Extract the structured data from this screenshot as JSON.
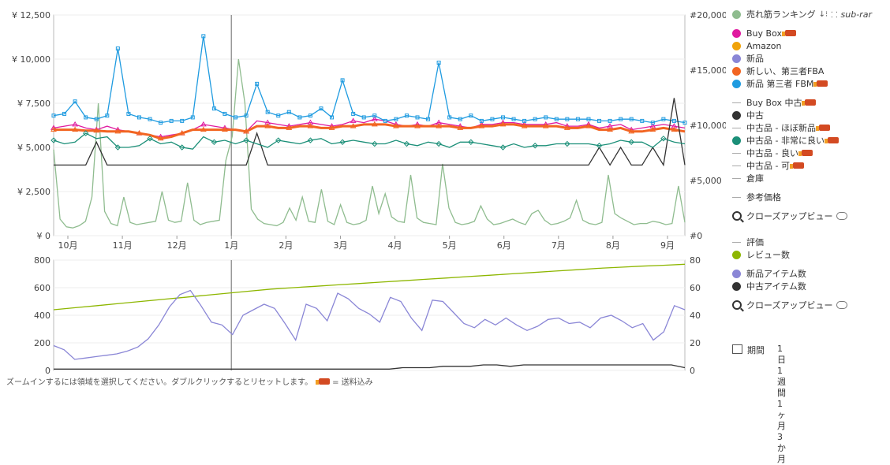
{
  "chart_data": [
    {
      "type": "line",
      "panel": "upper",
      "yaxis_left": {
        "ticks": [
          "¥ 0",
          "¥ 2,500",
          "¥ 5,000",
          "¥ 7,500",
          "¥ 10,000",
          "¥ 12,500"
        ],
        "ylim": [
          0,
          12500
        ]
      },
      "yaxis_right": {
        "ticks": [
          "#0",
          "#5,000",
          "#10,000",
          "#15,000",
          "#20,000"
        ],
        "ylim": [
          0,
          20000
        ]
      },
      "x_ticks": [
        "10月",
        "11月",
        "12月",
        "1月",
        "2月",
        "3月",
        "4月",
        "5月",
        "6月",
        "7月",
        "8月",
        "9月"
      ],
      "series": [
        {
          "name": "売れ筋ランキング",
          "color": "#8fbc8f",
          "axis": "right",
          "values": [
            7800,
            1500,
            800,
            700,
            900,
            1300,
            3500,
            12000,
            2200,
            1100,
            900,
            3500,
            1200,
            1000,
            1100,
            1200,
            1300,
            4000,
            1400,
            1200,
            1300,
            4800,
            1400,
            1000,
            1200,
            1300,
            1400,
            6800,
            9000,
            16000,
            12000,
            2400,
            1500,
            1100,
            1000,
            900,
            1200,
            2500,
            1400,
            3500,
            1300,
            1200,
            4200,
            1300,
            1000,
            2800,
            1200,
            1000,
            1100,
            1400,
            4500,
            2000,
            3800,
            1700,
            1300,
            1200,
            5500,
            1600,
            1200,
            1100,
            1000,
            6500,
            2500,
            1200,
            1000,
            1100,
            1300,
            2700,
            1500,
            1000,
            1100,
            1300,
            1500,
            1200,
            1000,
            2000,
            2300,
            1400,
            1000,
            1100,
            1300,
            1600,
            3200,
            1400,
            1100,
            1000,
            1200,
            5500,
            2000,
            1600,
            1300,
            1000,
            1100,
            1100,
            1300,
            1200,
            1000,
            1100,
            4500,
            1200
          ]
        },
        {
          "name": "Buy Box",
          "color": "#e01aa0",
          "axis": "left",
          "values": [
            6100,
            6200,
            6300,
            6100,
            6000,
            6200,
            6000,
            5900,
            5800,
            5700,
            5600,
            5700,
            5800,
            6000,
            6300,
            6200,
            6100,
            6000,
            5900,
            6500,
            6400,
            6300,
            6200,
            6300,
            6400,
            6300,
            6200,
            6300,
            6500,
            6400,
            6600,
            6500,
            6300,
            6200,
            6300,
            6200,
            6400,
            6300,
            6200,
            6100,
            6300,
            6300,
            6400,
            6400,
            6300,
            6300,
            6300,
            6400,
            6200,
            6200,
            6300,
            6100,
            6200,
            6300,
            6000,
            6100,
            6200,
            6300,
            6200,
            6100
          ]
        },
        {
          "name": "新しい、第三者FBA",
          "color": "#f26522",
          "axis": "left",
          "values": [
            6000,
            6000,
            6000,
            5950,
            5950,
            5900,
            5900,
            5900,
            5800,
            5700,
            5500,
            5600,
            5800,
            6000,
            6000,
            6000,
            6000,
            6000,
            5900,
            6200,
            6200,
            6100,
            6100,
            6200,
            6200,
            6100,
            6100,
            6200,
            6200,
            6300,
            6300,
            6300,
            6200,
            6200,
            6200,
            6200,
            6200,
            6200,
            6100,
            6100,
            6200,
            6200,
            6300,
            6300,
            6200,
            6200,
            6200,
            6200,
            6100,
            6100,
            6200,
            6000,
            6000,
            6100,
            5900,
            5900,
            6000,
            6100,
            6000,
            5900
          ]
        },
        {
          "name": "新品 第三者 FBM",
          "color": "#1f9be0",
          "axis": "left",
          "values": [
            6800,
            6900,
            7600,
            6700,
            6600,
            6800,
            10600,
            6900,
            6700,
            6600,
            6400,
            6500,
            6500,
            6700,
            11300,
            7200,
            6900,
            6700,
            6800,
            8600,
            7000,
            6800,
            7000,
            6700,
            6800,
            7200,
            6700,
            8800,
            6900,
            6700,
            6800,
            6500,
            6600,
            6800,
            6700,
            6600,
            9800,
            6700,
            6600,
            6800,
            6500,
            6600,
            6700,
            6600,
            6500,
            6600,
            6700,
            6600,
            6600,
            6600,
            6600,
            6500,
            6500,
            6600,
            6600,
            6500,
            6400,
            6600,
            6500,
            6400
          ]
        },
        {
          "name": "中古",
          "color": "#333333",
          "axis": "left",
          "values": [
            4000,
            4000,
            4000,
            4000,
            5300,
            4000,
            4000,
            4000,
            4000,
            4000,
            4000,
            4000,
            4000,
            4000,
            4000,
            4000,
            4000,
            4000,
            4000,
            5800,
            4000,
            4000,
            4000,
            4000,
            4000,
            4000,
            4000,
            4000,
            4000,
            4000,
            4000,
            4000,
            4000,
            4000,
            4000,
            4000,
            4000,
            4000,
            4000,
            4000,
            4000,
            4000,
            4000,
            4000,
            4000,
            4000,
            4000,
            4000,
            4000,
            4000,
            4000,
            5000,
            4000,
            5000,
            4000,
            4000,
            5000,
            4000,
            7800,
            4000
          ]
        },
        {
          "name": "中古品 - 非常に良い",
          "color": "#1b8f78",
          "axis": "left",
          "values": [
            5400,
            5200,
            5300,
            5800,
            5500,
            5600,
            5000,
            5000,
            5100,
            5500,
            5200,
            5300,
            5000,
            4900,
            5600,
            5300,
            5400,
            5200,
            5400,
            5200,
            5000,
            5400,
            5300,
            5200,
            5400,
            5500,
            5200,
            5300,
            5400,
            5300,
            5200,
            5200,
            5400,
            5200,
            5100,
            5300,
            5200,
            5000,
            5300,
            5300,
            5200,
            5100,
            5000,
            5200,
            5000,
            5100,
            5100,
            5200,
            5200,
            5200,
            5200,
            5100,
            5200,
            5400,
            5300,
            5300,
            5000,
            5500,
            5300,
            5200
          ]
        }
      ]
    },
    {
      "type": "line",
      "panel": "lower",
      "yaxis_left": {
        "ticks": [
          "0",
          "200",
          "400",
          "600",
          "800"
        ],
        "ylim": [
          0,
          800
        ]
      },
      "yaxis_right": {
        "ticks": [
          "0",
          "20",
          "40",
          "60",
          "80"
        ],
        "ylim": [
          0,
          80
        ]
      },
      "series": [
        {
          "name": "レビュー数",
          "color": "#8db600",
          "axis": "left",
          "values": [
            440,
            455,
            470,
            485,
            500,
            515,
            530,
            545,
            560,
            575,
            590,
            600,
            610,
            620,
            630,
            640,
            650,
            660,
            670,
            680,
            690,
            700,
            710,
            720,
            730,
            740,
            748,
            756,
            762,
            770
          ]
        },
        {
          "name": "新品アイテム数",
          "color": "#8a86d6",
          "axis": "right",
          "values": [
            18,
            15,
            8,
            9,
            10,
            11,
            12,
            14,
            17,
            23,
            33,
            46,
            55,
            58,
            47,
            35,
            33,
            26,
            40,
            44,
            48,
            45,
            34,
            22,
            48,
            45,
            36,
            56,
            52,
            45,
            41,
            35,
            53,
            50,
            38,
            29,
            51,
            50,
            42,
            34,
            31,
            37,
            33,
            38,
            33,
            29,
            32,
            37,
            38,
            34,
            35,
            31,
            38,
            40,
            36,
            31,
            34,
            22,
            28,
            47,
            44
          ]
        },
        {
          "name": "中古アイテム数",
          "color": "#333333",
          "axis": "right",
          "values": [
            1,
            1,
            1,
            1,
            1,
            1,
            1,
            1,
            1,
            1,
            1,
            1,
            1,
            1,
            1,
            1,
            1,
            1,
            1,
            1,
            1,
            1,
            1,
            1,
            1,
            1,
            2,
            2,
            2,
            3,
            3,
            3,
            4,
            4,
            3,
            4,
            4,
            4,
            4,
            4,
            4,
            4,
            4,
            4,
            4,
            4,
            4,
            2
          ]
        }
      ]
    }
  ],
  "legend": {
    "sales_rank": "売れ筋ランキング",
    "sub_rank": "sub-rar",
    "buy_box": "Buy Box",
    "amazon": "Amazon",
    "new": "新品",
    "new_fba": "新しい、第三者FBA",
    "new_fbm": "新品 第三者 FBM",
    "buy_box_used": "Buy Box 中古",
    "used": "中古",
    "used_like_new": "中古品 - ほぼ新品",
    "used_very_good": "中古品 - 非常に良い",
    "used_good": "中古品 - 良い",
    "used_acceptable": "中古品 - 可",
    "warehouse": "倉庫",
    "reference_price": "参考価格",
    "closeup_1": "クローズアップビュー",
    "rating": "評価",
    "review_count": "レビュー数",
    "new_item_count": "新品アイテム数",
    "used_item_count": "中古アイテム数",
    "closeup_2": "クローズアップビュー"
  },
  "legend_colors": {
    "sales_rank": "#8fbc8f",
    "buy_box": "#e01aa0",
    "amazon": "#f0a30a",
    "new": "#8a86d6",
    "new_fba": "#f26522",
    "new_fbm": "#1f9be0",
    "used": "#333333",
    "used_very_good": "#1b8f78",
    "review_count": "#8db600",
    "new_item_count": "#8a86d6",
    "used_item_count": "#333333"
  },
  "period": {
    "label": "期間",
    "options": [
      "1日",
      "1週間",
      "1ヶ月",
      "3か月"
    ]
  },
  "footer": {
    "hint": "ズームインするには領域を選択してください。ダブルクリックするとリセットします。",
    "shipping": "= 送料込み"
  }
}
